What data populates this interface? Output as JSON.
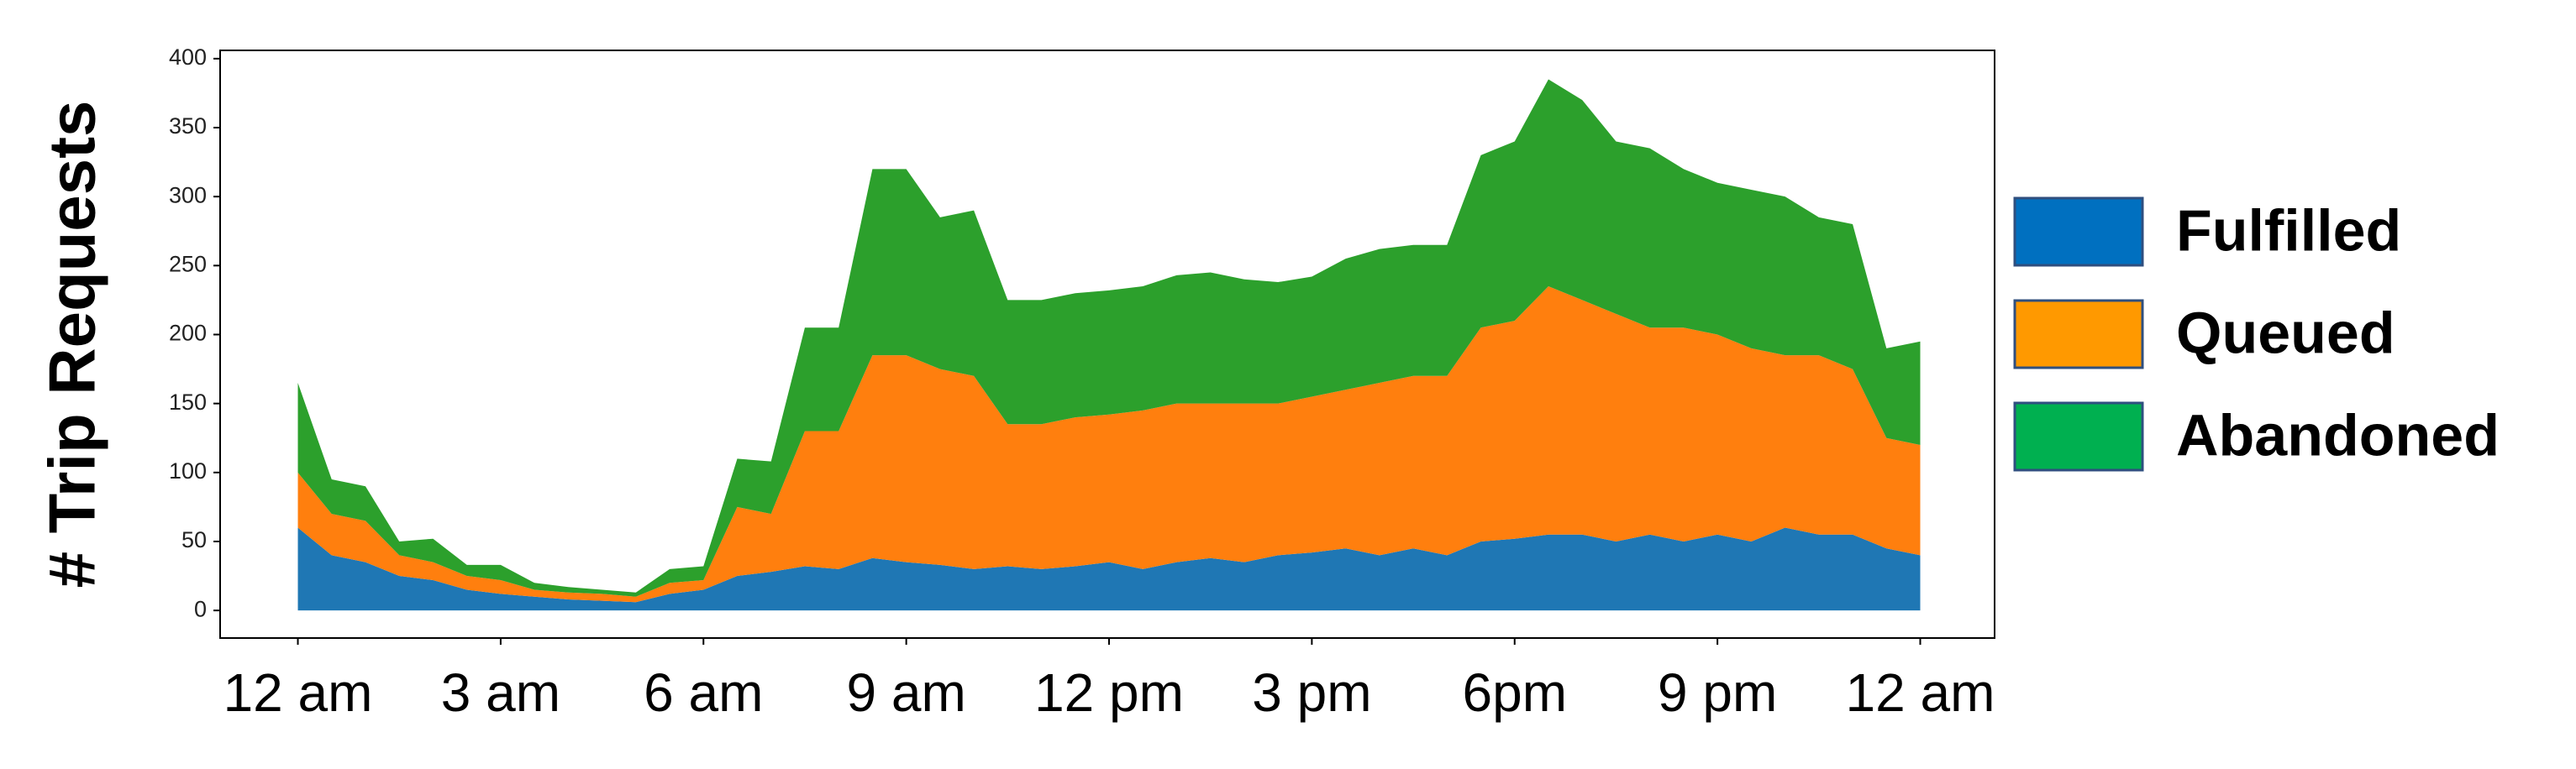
{
  "chart_data": {
    "type": "stacked-area",
    "y_label": "# Trip Requests",
    "x": [
      0,
      0.5,
      1,
      1.5,
      2,
      2.5,
      3,
      3.5,
      4,
      4.5,
      5,
      5.5,
      6,
      6.5,
      7,
      7.5,
      8,
      8.5,
      9,
      9.5,
      10,
      10.5,
      11,
      11.5,
      12,
      12.5,
      13,
      13.5,
      14,
      14.5,
      15,
      15.5,
      16,
      16.5,
      17,
      17.5,
      18,
      18.5,
      19,
      19.5,
      20,
      20.5,
      21,
      21.5,
      22,
      22.5,
      23,
      23.5,
      24
    ],
    "series": [
      {
        "name": "Fulfilled",
        "color": "#1f77b4",
        "legend_color": "#0070c0",
        "values": [
          60,
          40,
          35,
          25,
          22,
          15,
          12,
          10,
          8,
          7,
          6,
          12,
          15,
          25,
          28,
          32,
          30,
          38,
          35,
          33,
          30,
          32,
          30,
          32,
          35,
          30,
          35,
          38,
          35,
          40,
          42,
          45,
          40,
          45,
          40,
          50,
          52,
          55,
          55,
          50,
          55,
          50,
          55,
          50,
          60,
          55,
          55,
          45,
          40
        ]
      },
      {
        "name": "Queued",
        "color": "#ff7f0e",
        "legend_color": "#ff9900",
        "values": [
          40,
          30,
          30,
          15,
          13,
          10,
          10,
          5,
          5,
          5,
          4,
          8,
          7,
          50,
          42,
          98,
          100,
          147,
          150,
          142,
          140,
          103,
          105,
          108,
          107,
          115,
          115,
          112,
          115,
          110,
          113,
          115,
          125,
          125,
          130,
          155,
          158,
          180,
          170,
          165,
          150,
          155,
          145,
          140,
          125,
          130,
          120,
          80,
          80
        ]
      },
      {
        "name": "Abandoned",
        "color": "#2ca02c",
        "legend_color": "#00b050",
        "values": [
          65,
          25,
          25,
          10,
          17,
          8,
          11,
          5,
          4,
          3,
          3,
          10,
          10,
          35,
          38,
          75,
          75,
          135,
          135,
          110,
          120,
          90,
          90,
          90,
          90,
          90,
          93,
          95,
          90,
          88,
          87,
          95,
          97,
          95,
          95,
          125,
          130,
          150,
          145,
          125,
          130,
          115,
          110,
          115,
          115,
          100,
          105,
          65,
          75
        ]
      }
    ],
    "xlim": [
      -1.15,
      25.1
    ],
    "xticks": [
      {
        "value": 0,
        "label": "12 am"
      },
      {
        "value": 3,
        "label": "3 am"
      },
      {
        "value": 6,
        "label": "6 am"
      },
      {
        "value": 9,
        "label": "9 am"
      },
      {
        "value": 12,
        "label": "12 pm"
      },
      {
        "value": 15,
        "label": "3 pm"
      },
      {
        "value": 18,
        "label": "6pm"
      },
      {
        "value": 21,
        "label": "9 pm"
      },
      {
        "value": 24,
        "label": "12 am"
      }
    ],
    "ylim": [
      -20,
      406
    ],
    "yticks": [
      0,
      50,
      100,
      150,
      200,
      250,
      300,
      350,
      400
    ],
    "grid": false,
    "legend": "right"
  }
}
